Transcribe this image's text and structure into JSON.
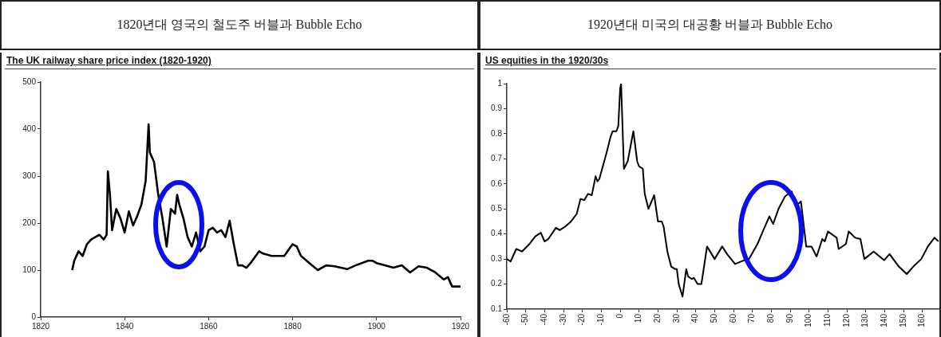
{
  "chart_data": [
    {
      "type": "line",
      "title": "1820년대 영국의 철도주 버블과 Bubble Echo",
      "subtitle": "The UK railway share price index (1820-1920)",
      "x": [
        1827.5,
        1828,
        1829,
        1830,
        1831,
        1832,
        1833,
        1834,
        1835,
        1835.7,
        1836,
        1836.5,
        1837,
        1838,
        1839,
        1840,
        1841,
        1842,
        1843,
        1844,
        1845,
        1845.7,
        1846,
        1847,
        1848,
        1849,
        1850,
        1851,
        1852,
        1852.5,
        1853,
        1854,
        1855,
        1856,
        1857,
        1858,
        1859,
        1860,
        1861,
        1862,
        1863,
        1864,
        1865,
        1866,
        1867,
        1868,
        1869,
        1870,
        1872,
        1873,
        1875,
        1878,
        1880,
        1881,
        1882,
        1884,
        1886,
        1888,
        1890,
        1893,
        1895,
        1898,
        1899,
        1900,
        1902,
        1904,
        1906,
        1908,
        1910,
        1912,
        1914,
        1916,
        1917,
        1918,
        1920
      ],
      "values": [
        100,
        120,
        140,
        130,
        155,
        165,
        170,
        175,
        165,
        175,
        310,
        260,
        185,
        230,
        210,
        180,
        225,
        195,
        215,
        240,
        290,
        410,
        350,
        330,
        260,
        210,
        150,
        230,
        220,
        260,
        240,
        210,
        170,
        150,
        180,
        140,
        150,
        185,
        190,
        180,
        185,
        170,
        205,
        155,
        110,
        110,
        105,
        115,
        140,
        135,
        130,
        130,
        155,
        150,
        130,
        115,
        100,
        110,
        108,
        102,
        110,
        120,
        120,
        115,
        110,
        105,
        110,
        95,
        108,
        105,
        95,
        80,
        85,
        65,
        65
      ],
      "color": "#000000",
      "xlim": [
        1820,
        1920
      ],
      "ylim": [
        0,
        500
      ],
      "xticks": [
        1820,
        1840,
        1860,
        1880,
        1900,
        1920
      ],
      "yticks": [
        0,
        100,
        200,
        300,
        400,
        500
      ],
      "grid": false,
      "legend": false,
      "marker": "none",
      "line_style": "solid"
    },
    {
      "type": "line",
      "title": "1920년대 미국의 대공황 버블과 Bubble Echo",
      "subtitle": "US equities in the 1920/30s",
      "x": [
        -60,
        -58,
        -55,
        -52,
        -48,
        -45,
        -42,
        -40,
        -38,
        -34,
        -32,
        -29,
        -26,
        -23,
        -21,
        -19,
        -17,
        -15,
        -13,
        -12,
        -11,
        -9,
        -7,
        -5,
        -4,
        -2,
        -1,
        0,
        0.5,
        2,
        4,
        7,
        9,
        10,
        12,
        13,
        15,
        18,
        20,
        22,
        23,
        25,
        27,
        29,
        30,
        31,
        33,
        35,
        36,
        38,
        39,
        41,
        43,
        46,
        50,
        54,
        56.6,
        60.8,
        65.7,
        67.8,
        72.7,
        75.5,
        79,
        81,
        83.8,
        87.3,
        90.8,
        93,
        95.7,
        98.5,
        101.3,
        104,
        107,
        108.3,
        110,
        114.6,
        115.7,
        119.5,
        121,
        124.4,
        127.2,
        129.3,
        134.2,
        139.8,
        142.6,
        147.5,
        151.7,
        155.2,
        159.4,
        162.9,
        166.4,
        168.5
      ],
      "values": [
        0.3,
        0.29,
        0.34,
        0.33,
        0.36,
        0.39,
        0.405,
        0.37,
        0.38,
        0.425,
        0.415,
        0.43,
        0.45,
        0.48,
        0.54,
        0.535,
        0.56,
        0.555,
        0.63,
        0.61,
        0.62,
        0.675,
        0.73,
        0.79,
        0.81,
        0.81,
        0.83,
        0.98,
        1.0,
        0.66,
        0.69,
        0.81,
        0.69,
        0.67,
        0.66,
        0.56,
        0.5,
        0.555,
        0.45,
        0.45,
        0.43,
        0.33,
        0.27,
        0.26,
        0.26,
        0.2,
        0.15,
        0.26,
        0.23,
        0.22,
        0.225,
        0.2,
        0.2,
        0.35,
        0.3,
        0.35,
        0.32,
        0.28,
        0.295,
        0.295,
        0.36,
        0.41,
        0.47,
        0.44,
        0.5,
        0.55,
        0.57,
        0.51,
        0.53,
        0.35,
        0.35,
        0.31,
        0.38,
        0.37,
        0.41,
        0.385,
        0.34,
        0.36,
        0.41,
        0.385,
        0.38,
        0.3,
        0.33,
        0.295,
        0.32,
        0.27,
        0.24,
        0.27,
        0.3,
        0.35,
        0.385,
        0.37
      ],
      "color": "#000000",
      "xlim": [
        -60,
        169
      ],
      "ylim": [
        0.1,
        1
      ],
      "xticks": [
        -60,
        -50,
        -40,
        -30,
        -20,
        -10,
        0,
        10,
        20,
        30,
        40,
        50,
        60,
        70,
        80,
        90,
        100,
        110,
        120,
        130,
        140,
        150,
        160
      ],
      "yticks": [
        0.1,
        0.2,
        0.3,
        0.4,
        0.5,
        0.6,
        0.7,
        0.8,
        0.9,
        1
      ],
      "grid": false,
      "legend": false,
      "marker": "none",
      "line_style": "solid"
    }
  ]
}
